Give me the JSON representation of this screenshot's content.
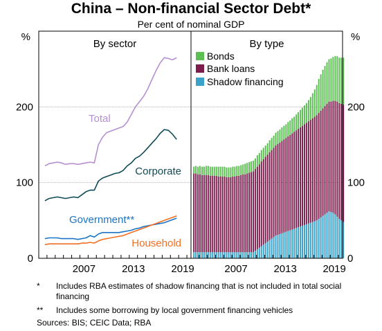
{
  "title": "China – Non-financial Sector Debt*",
  "subtitle": "Per cent of nominal GDP",
  "chart_data": [
    {
      "type": "line",
      "panel_title": "By sector",
      "y_unit": "%",
      "ylim": [
        0,
        300
      ],
      "y_ticks": [
        "0",
        "100",
        "200"
      ],
      "x_ticks": [
        "2007",
        "2013",
        "2019"
      ],
      "x": [
        2002.75,
        2003.25,
        2003.75,
        2004.25,
        2004.75,
        2005.25,
        2005.75,
        2006.25,
        2006.75,
        2007.25,
        2007.75,
        2008.25,
        2008.75,
        2009.25,
        2009.75,
        2010.25,
        2010.75,
        2011.25,
        2011.75,
        2012.25,
        2012.75,
        2013.25,
        2013.75,
        2014.25,
        2014.75,
        2015.25,
        2015.75,
        2016.25,
        2016.75,
        2017.25,
        2017.75,
        2018.25,
        2018.75
      ],
      "series": [
        {
          "name": "Total",
          "color": "#b48fd1",
          "values": [
            122,
            125,
            126,
            127,
            126,
            124,
            125,
            125,
            124,
            125,
            126,
            127,
            126,
            150,
            160,
            166,
            168,
            170,
            172,
            174,
            180,
            190,
            200,
            207,
            214,
            224,
            236,
            248,
            258,
            265,
            264,
            262,
            265
          ]
        },
        {
          "name": "Corporate",
          "color": "#0f4a55",
          "values": [
            76,
            79,
            80,
            81,
            80,
            79,
            80,
            81,
            80,
            84,
            88,
            90,
            90,
            102,
            106,
            108,
            110,
            112,
            113,
            116,
            122,
            126,
            132,
            135,
            140,
            146,
            152,
            158,
            165,
            170,
            169,
            164,
            157
          ]
        },
        {
          "name": "Government**",
          "color": "#1a73c7",
          "values": [
            26,
            27,
            27,
            27,
            26,
            26,
            26,
            26,
            25,
            26,
            27,
            30,
            28,
            32,
            34,
            34,
            34,
            34,
            34,
            35,
            36,
            37,
            39,
            40,
            42,
            43,
            44,
            45,
            46,
            47,
            49,
            51,
            53
          ]
        },
        {
          "name": "Household",
          "color": "#f26e21",
          "values": [
            18,
            19,
            19,
            19,
            19,
            19,
            19,
            19,
            19,
            20,
            20,
            21,
            20,
            23,
            25,
            26,
            27,
            28,
            29,
            30,
            32,
            34,
            36,
            38,
            40,
            42,
            44,
            46,
            48,
            50,
            52,
            54,
            56
          ]
        }
      ]
    },
    {
      "type": "bar",
      "stacked": true,
      "panel_title": "By type",
      "y_unit": "%",
      "ylim": [
        0,
        300
      ],
      "y_ticks": [
        "0",
        "100",
        "200"
      ],
      "x_ticks": [
        "2007",
        "2013",
        "2019"
      ],
      "x_start": 2002.25,
      "x_step": 0.25,
      "legend_position": "top-left",
      "series": [
        {
          "name": "Bonds",
          "color": "#5bbf52",
          "values": [
            9,
            10,
            10,
            11,
            11,
            11,
            12,
            12,
            12,
            12,
            12,
            12,
            13,
            13,
            13,
            13,
            13,
            13,
            13,
            13,
            13,
            13,
            13,
            13,
            13,
            14,
            14,
            14,
            14,
            14,
            14,
            15,
            15,
            15,
            15,
            15,
            15,
            16,
            16,
            16,
            17,
            17,
            17,
            18,
            18,
            18,
            19,
            19,
            20,
            20,
            21,
            22,
            23,
            24,
            25,
            26,
            28,
            30,
            33,
            36,
            40,
            45,
            48,
            51,
            53,
            55,
            56,
            57,
            58,
            59,
            60,
            60,
            61,
            62
          ]
        },
        {
          "name": "Bank loans",
          "color": "#7d1d4d",
          "values": [
            104,
            104,
            103,
            103,
            102,
            102,
            102,
            102,
            101,
            101,
            101,
            101,
            100,
            100,
            100,
            100,
            99,
            99,
            99,
            100,
            100,
            101,
            101,
            102,
            103,
            103,
            104,
            105,
            106,
            107,
            108,
            109,
            110,
            112,
            113,
            114,
            115,
            116,
            117,
            118,
            119,
            120,
            121,
            122,
            123,
            124,
            125,
            126,
            127,
            128,
            129,
            130,
            131,
            132,
            133,
            134,
            135,
            136,
            137,
            138,
            139,
            140,
            141,
            142,
            143,
            144,
            145,
            146,
            148,
            150,
            152,
            153,
            154,
            155
          ]
        },
        {
          "name": "Shadow financing",
          "color": "#3aa1c8",
          "values": [
            8,
            8,
            8,
            8,
            8,
            8,
            8,
            8,
            8,
            8,
            8,
            8,
            8,
            8,
            8,
            8,
            8,
            8,
            8,
            8,
            8,
            8,
            8,
            8,
            8,
            8,
            8,
            8,
            8,
            8,
            10,
            12,
            14,
            16,
            18,
            20,
            22,
            24,
            26,
            28,
            30,
            31,
            32,
            33,
            34,
            35,
            36,
            37,
            38,
            39,
            40,
            41,
            42,
            43,
            44,
            45,
            46,
            47,
            48,
            49,
            50,
            52,
            54,
            56,
            58,
            60,
            62,
            61,
            60,
            58,
            55,
            52,
            50,
            48
          ]
        }
      ]
    }
  ],
  "notes": [
    {
      "mark": "*",
      "text": "Includes RBA estimates of shadow financing that is not included in total social financing"
    },
    {
      "mark": "**",
      "text": "Includes some borrowing by local government financing vehicles"
    }
  ],
  "sources": "Sources: BIS; CEIC Data; RBA"
}
